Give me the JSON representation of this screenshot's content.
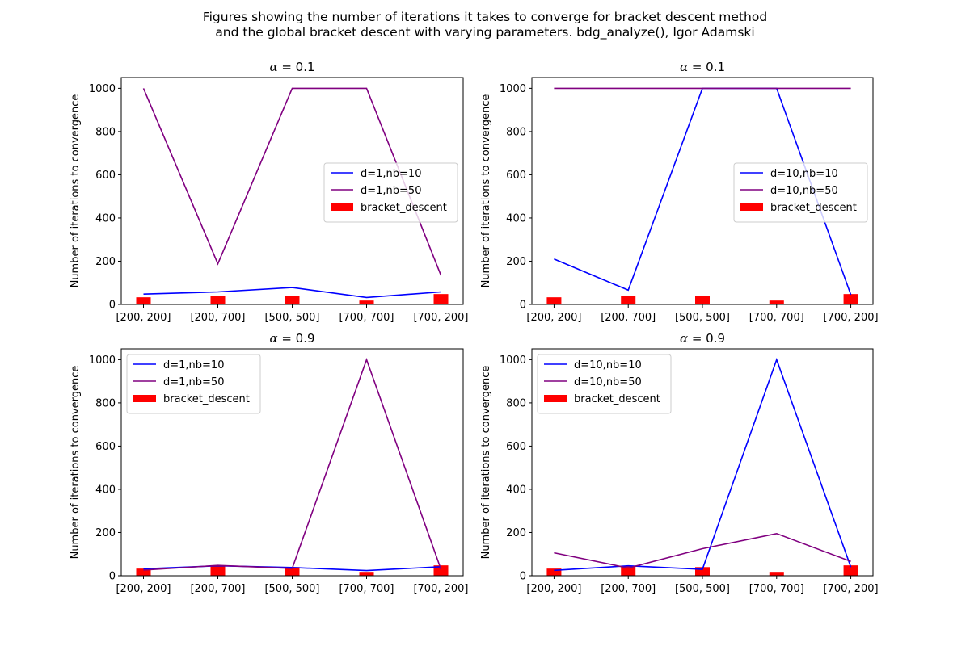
{
  "figure": {
    "title_line1": "Figures showing the number of iterations it takes to converge for bracket descent method",
    "title_line2": "and the global bracket descent with varying parameters. bdg_analyze(), Igor Adamski"
  },
  "colors": {
    "blue": "#0000ff",
    "purple": "#800080",
    "red": "#ff0000",
    "axis": "#000000"
  },
  "chart_data": [
    {
      "type": "line",
      "title_symbol": "α",
      "title_value": "= 0.1",
      "ylabel": "Number of iterations to convergence",
      "xlabel": "",
      "categories": [
        "[200, 200]",
        "[200, 700]",
        "[500, 500]",
        "[700, 700]",
        "[700, 200]"
      ],
      "ylim": [
        0,
        1050
      ],
      "yticks": [
        0,
        200,
        400,
        600,
        800,
        1000
      ],
      "legend_position": "center-right",
      "series": [
        {
          "name": "d=1,nb=10",
          "kind": "line",
          "color": "#0000ff",
          "values": [
            48,
            58,
            78,
            32,
            58
          ]
        },
        {
          "name": "d=1,nb=50",
          "kind": "line",
          "color": "#800080",
          "values": [
            1000,
            188,
            1000,
            1000,
            135
          ]
        },
        {
          "name": "bracket_descent",
          "kind": "bar",
          "color": "#ff0000",
          "values": [
            33,
            40,
            40,
            18,
            48
          ]
        }
      ]
    },
    {
      "type": "line",
      "title_symbol": "α",
      "title_value": "= 0.1",
      "ylabel": "Number of iterations to convergence",
      "xlabel": "",
      "categories": [
        "[200, 200]",
        "[200, 700]",
        "[500, 500]",
        "[700, 700]",
        "[700, 200]"
      ],
      "ylim": [
        0,
        1050
      ],
      "yticks": [
        0,
        200,
        400,
        600,
        800,
        1000
      ],
      "legend_position": "center-right",
      "series": [
        {
          "name": "d=10,nb=10",
          "kind": "line",
          "color": "#0000ff",
          "values": [
            210,
            66,
            1000,
            1000,
            45
          ]
        },
        {
          "name": "d=10,nb=50",
          "kind": "line",
          "color": "#800080",
          "values": [
            1000,
            1000,
            1000,
            1000,
            1000
          ]
        },
        {
          "name": "bracket_descent",
          "kind": "bar",
          "color": "#ff0000",
          "values": [
            33,
            40,
            40,
            18,
            48
          ]
        }
      ]
    },
    {
      "type": "line",
      "title_symbol": "α",
      "title_value": "= 0.9",
      "ylabel": "Number of iterations to convergence",
      "xlabel": "",
      "categories": [
        "[200, 200]",
        "[200, 700]",
        "[500, 500]",
        "[700, 700]",
        "[700, 200]"
      ],
      "ylim": [
        0,
        1050
      ],
      "yticks": [
        0,
        200,
        400,
        600,
        800,
        1000
      ],
      "legend_position": "upper-left",
      "series": [
        {
          "name": "d=1,nb=10",
          "kind": "line",
          "color": "#0000ff",
          "values": [
            32,
            46,
            38,
            24,
            42
          ]
        },
        {
          "name": "d=1,nb=50",
          "kind": "line",
          "color": "#800080",
          "values": [
            26,
            48,
            34,
            1000,
            30
          ]
        },
        {
          "name": "bracket_descent",
          "kind": "bar",
          "color": "#ff0000",
          "values": [
            33,
            45,
            40,
            18,
            48
          ]
        }
      ]
    },
    {
      "type": "line",
      "title_symbol": "α",
      "title_value": "= 0.9",
      "ylabel": "Number of iterations to convergence",
      "xlabel": "",
      "categories": [
        "[200, 200]",
        "[200, 700]",
        "[500, 500]",
        "[700, 700]",
        "[700, 200]"
      ],
      "ylim": [
        0,
        1050
      ],
      "yticks": [
        0,
        200,
        400,
        600,
        800,
        1000
      ],
      "legend_position": "upper-left",
      "series": [
        {
          "name": "d=10,nb=10",
          "kind": "line",
          "color": "#0000ff",
          "values": [
            25,
            46,
            30,
            1000,
            40
          ]
        },
        {
          "name": "d=10,nb=50",
          "kind": "line",
          "color": "#800080",
          "values": [
            106,
            36,
            125,
            195,
            66
          ]
        },
        {
          "name": "bracket_descent",
          "kind": "bar",
          "color": "#ff0000",
          "values": [
            33,
            45,
            40,
            18,
            48
          ]
        }
      ]
    }
  ]
}
